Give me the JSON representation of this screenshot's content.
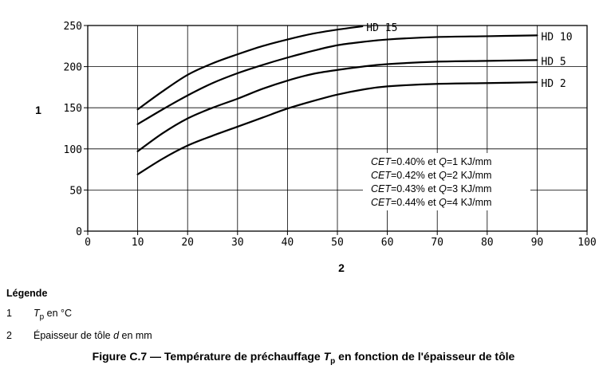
{
  "chart_data": {
    "type": "line",
    "xaxis_number": "2",
    "yaxis_number": "1",
    "xlim": [
      0,
      100
    ],
    "ylim": [
      0,
      250
    ],
    "x_ticks": [
      0,
      10,
      20,
      30,
      40,
      50,
      60,
      70,
      80,
      90,
      100
    ],
    "y_ticks": [
      0,
      50,
      100,
      150,
      200,
      250
    ],
    "grid": true,
    "series": [
      {
        "name": "HD 15",
        "x": [
          10,
          15,
          20,
          25,
          30,
          35,
          40,
          45,
          50,
          55
        ],
        "y": [
          148,
          170,
          190,
          204,
          215,
          225,
          233,
          240,
          245,
          249
        ]
      },
      {
        "name": "HD 10",
        "x": [
          10,
          15,
          20,
          25,
          30,
          35,
          40,
          45,
          50,
          55,
          60,
          70,
          80,
          90
        ],
        "y": [
          130,
          148,
          165,
          180,
          192,
          202,
          211,
          219,
          226,
          230,
          233,
          236,
          237,
          238
        ]
      },
      {
        "name": "HD 5",
        "x": [
          10,
          15,
          20,
          25,
          30,
          35,
          40,
          45,
          50,
          55,
          60,
          70,
          80,
          90
        ],
        "y": [
          97,
          119,
          137,
          150,
          161,
          173,
          183,
          191,
          196,
          200,
          203,
          206,
          207,
          208
        ]
      },
      {
        "name": "HD 2",
        "x": [
          10,
          15,
          20,
          25,
          30,
          35,
          40,
          45,
          50,
          55,
          60,
          70,
          80,
          90
        ],
        "y": [
          69,
          88,
          104,
          116,
          127,
          138,
          149,
          158,
          166,
          172,
          176,
          179,
          180,
          181
        ]
      }
    ],
    "annotations": [
      {
        "lead": "CET",
        "text": "=0.40% et ",
        "q": "Q",
        "rest": "=1 KJ/mm"
      },
      {
        "lead": "CET",
        "text": "=0.42% et ",
        "q": "Q",
        "rest": "=2 KJ/mm"
      },
      {
        "lead": "CET",
        "text": "=0.43% et ",
        "q": "Q",
        "rest": "=3 KJ/mm"
      },
      {
        "lead": "CET",
        "text": "=0.44% et ",
        "q": "Q",
        "rest": "=4 KJ/mm"
      }
    ]
  },
  "legend": {
    "title": "Légende",
    "items": [
      {
        "num": "1",
        "var": "T",
        "sub": "p",
        "text": " en °C"
      },
      {
        "num": "2",
        "pre": "Épaisseur de tôle ",
        "var": "d",
        "text": " en mm"
      }
    ]
  },
  "caption": {
    "prefix": "Figure C.7 — Température de préchauffage ",
    "var": "T",
    "sub": "p",
    "suffix": " en fonction de l'épaisseur de tôle"
  }
}
